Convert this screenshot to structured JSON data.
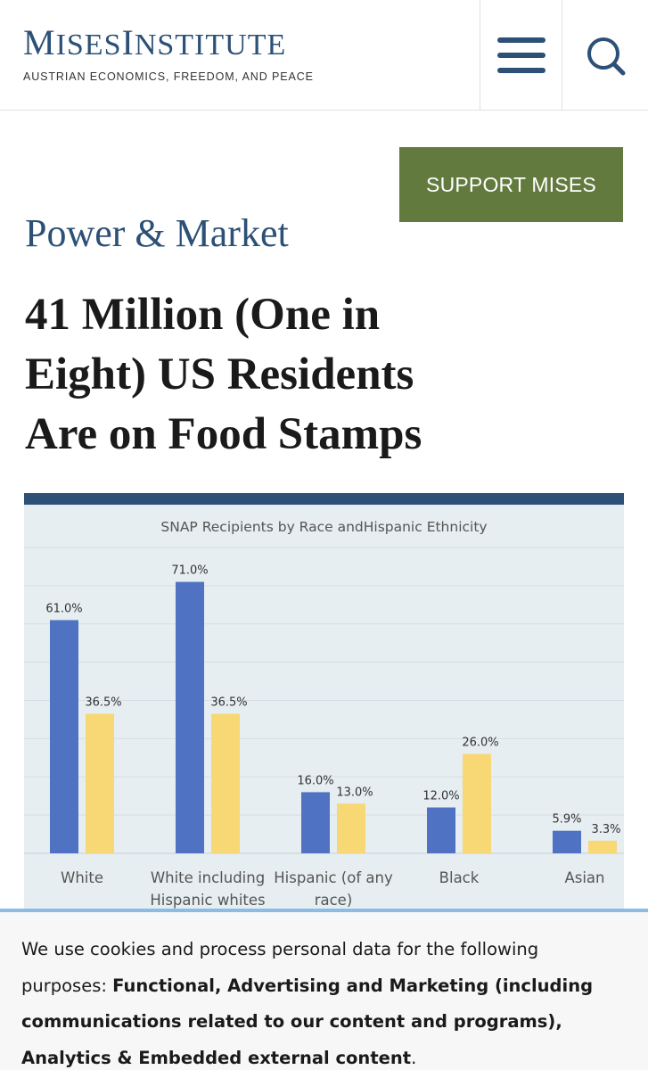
{
  "header": {
    "logo_first": "M",
    "logo_rest1": "ISES",
    "logo_second": "I",
    "logo_rest2": "NSTITUTE",
    "tagline": "AUSTRIAN ECONOMICS, FREEDOM, AND PEACE",
    "menu_icon": "hamburger-menu-icon",
    "search_icon": "search-icon"
  },
  "support_label": "SUPPORT MISES",
  "section_title": "Power & Market",
  "headline_lines": [
    "41 Million (One in",
    "Eight) US Residents",
    "Are on Food Stamps"
  ],
  "colors": {
    "brand_blue": "#2c5076",
    "support_green": "#637a3e",
    "bar_blue": "#4f72c3",
    "bar_yellow": "#f8d775"
  },
  "chart_data": {
    "type": "bar",
    "title": "SNAP Recipients by Race andHispanic Ethnicity",
    "categories": [
      [
        "White"
      ],
      [
        "White including",
        "Hispanic whites"
      ],
      [
        "Hispanic (of any",
        "race)"
      ],
      [
        "Black"
      ],
      [
        "Asian"
      ]
    ],
    "series": [
      {
        "values": [
          61.0,
          71.0,
          16.0,
          12.0,
          5.9
        ],
        "labels": [
          "61.0%",
          "71.0%",
          "16.0%",
          "12.0%",
          "5.9%"
        ]
      },
      {
        "values": [
          36.5,
          36.5,
          13.0,
          26.0,
          3.3
        ],
        "labels": [
          "36.5%",
          "36.5%",
          "13.0%",
          "26.0%",
          "3.3%"
        ]
      }
    ],
    "ylim": [
      0,
      80
    ],
    "grid": true
  },
  "cookie": {
    "intro": "We use cookies and process personal data for the following purposes: ",
    "purposes": "Functional, Advertising and Marketing (including communications related to our content and programs), Analytics & Embedded external content",
    "end": "."
  }
}
